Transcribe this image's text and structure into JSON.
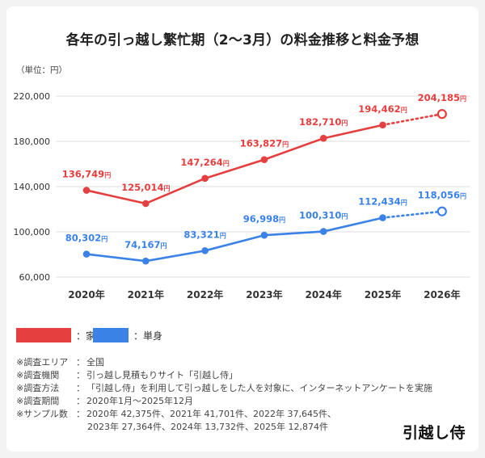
{
  "title": "各年の引っ越し繁忙期（2～3月）の料金推移と料金予想",
  "unit_label": "（単位：円）",
  "colors": {
    "family": "#E53F3F",
    "single": "#3B82E6",
    "grid": "#DDDDDD",
    "axis_text": "#333333"
  },
  "chart_data": {
    "type": "line",
    "title": "各年の引っ越し繁忙期（2～3月）の料金推移と料金予想",
    "xlabel": "",
    "ylabel": "（単位：円）",
    "categories": [
      "2020年",
      "2021年",
      "2022年",
      "2023年",
      "2024年",
      "2025年",
      "2026年"
    ],
    "ylim": [
      60000,
      220000
    ],
    "yticks": [
      60000,
      100000,
      140000,
      180000,
      220000
    ],
    "ytick_labels": [
      "60,000",
      "100,000",
      "140,000",
      "180,000",
      "220,000"
    ],
    "grid": true,
    "legend_position": "bottom-left",
    "forecast_from_index": 5,
    "series": [
      {
        "name": "：家族",
        "color": "#E53F3F",
        "values": [
          136749,
          125014,
          147264,
          163827,
          182710,
          194462,
          204185
        ],
        "labels": [
          "136,749円",
          "125,014円",
          "147,264円",
          "163,827円",
          "182,710円",
          "194,462円",
          "204,185円"
        ]
      },
      {
        "name": "：単身",
        "color": "#3B82E6",
        "values": [
          80302,
          74167,
          83321,
          96998,
          100310,
          112434,
          118056
        ],
        "labels": [
          "80,302円",
          "74,167円",
          "83,321円",
          "96,998円",
          "100,310円",
          "112,434円",
          "118,056円"
        ]
      }
    ]
  },
  "legend": [
    {
      "label": "：家族",
      "color": "#E53F3F"
    },
    {
      "label": "：単身",
      "color": "#3B82E6"
    }
  ],
  "notes": {
    "area": {
      "label": "※調査エリア",
      "value": "全国"
    },
    "org": {
      "label": "※調査機関",
      "value": "引っ越し見積もりサイト「引越し侍」"
    },
    "method": {
      "label": "※調査方法",
      "value": "「引越し侍」を利用して引っ越しをした人を対象に、インターネットアンケートを実施"
    },
    "period": {
      "label": "※調査期間",
      "value": "2020年1月～2025年12月"
    },
    "sample": {
      "label": "※サンプル数",
      "value": "2020年 42,375件、2021年 41,701件、2022年 37,645件、",
      "value2": "2023年 27,364件、2024年 13,732件、2025年 12,874件"
    }
  },
  "logo_text": "引越し侍"
}
